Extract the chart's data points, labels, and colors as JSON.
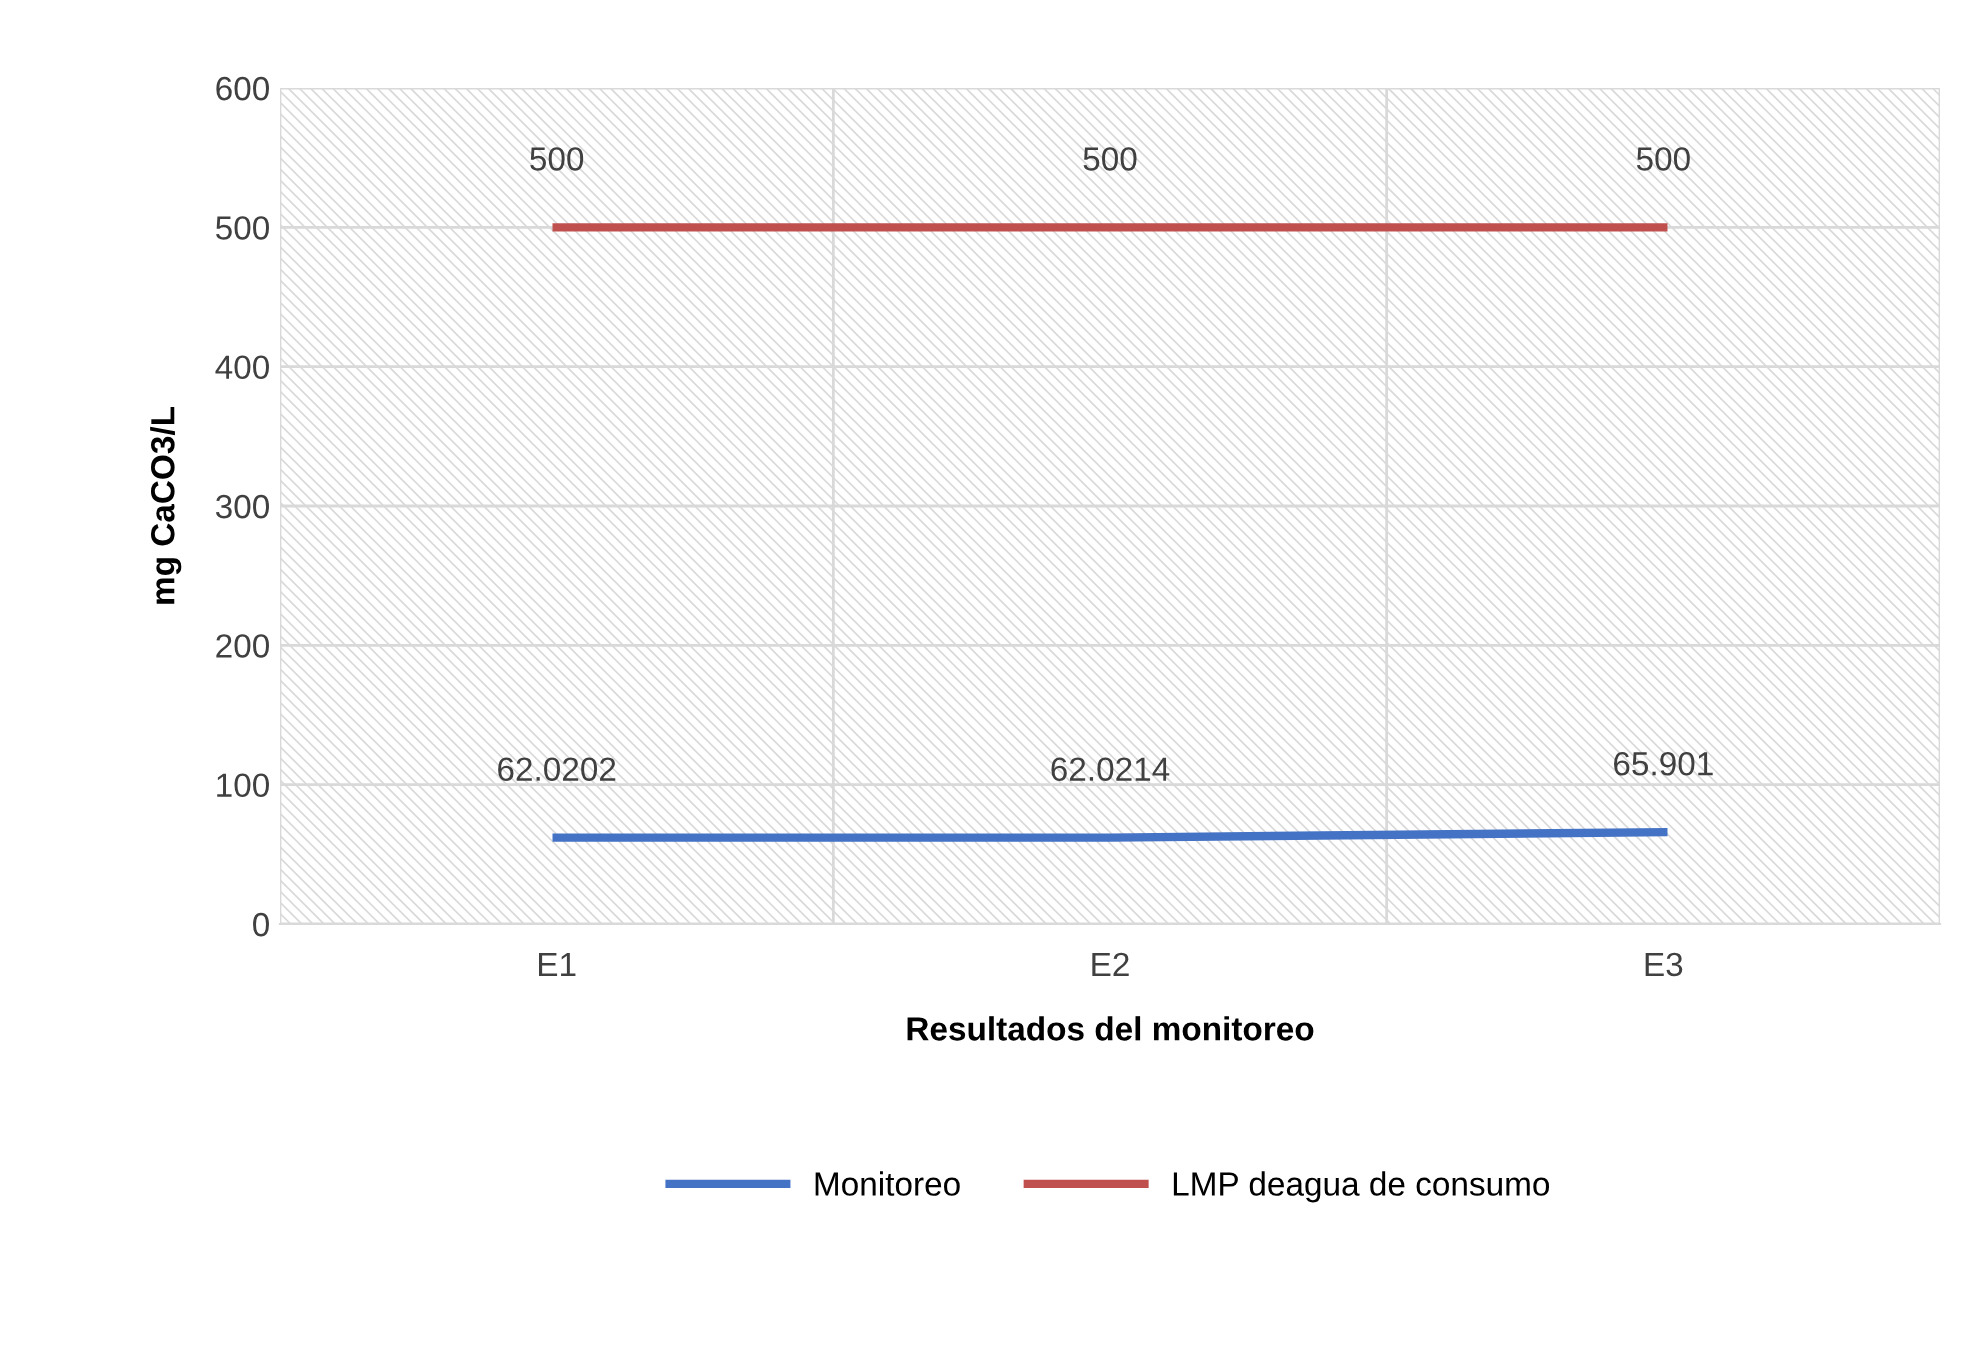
{
  "chart_data": {
    "type": "line",
    "xlabel": "Resultados del monitoreo",
    "ylabel": "mg CaCO3/L",
    "categories": [
      "E1",
      "E2",
      "E3"
    ],
    "series": [
      {
        "name": "Monitoreo",
        "color": "#4472c4",
        "values": [
          62.0202,
          62.0214,
          65.901
        ]
      },
      {
        "name": "LMP deagua de consumo",
        "color": "#c0504d",
        "values": [
          500,
          500,
          500
        ]
      }
    ],
    "ylim": [
      0,
      600
    ],
    "yticks": [
      0,
      100,
      200,
      300,
      400,
      500,
      600
    ],
    "grid": true,
    "legend": "bottom",
    "data_labels": true,
    "marker": "none",
    "line_style": "solid"
  }
}
